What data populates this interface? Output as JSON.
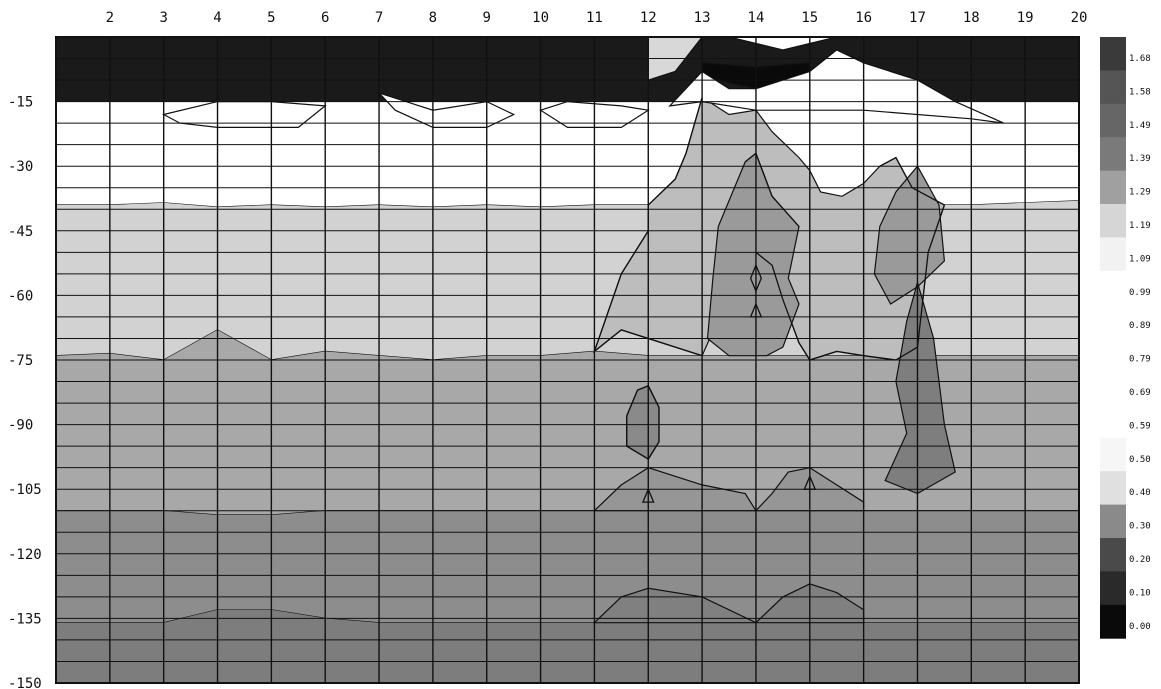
{
  "chart_data": {
    "type": "heatmap",
    "title": "",
    "xlabel": "",
    "ylabel": "",
    "x_ticks": [
      2,
      3,
      4,
      5,
      6,
      7,
      8,
      9,
      10,
      11,
      12,
      13,
      14,
      15,
      16,
      17,
      18,
      19,
      20
    ],
    "xlim": [
      1,
      20
    ],
    "y_ticks": [
      -15,
      -30,
      -45,
      -60,
      -75,
      -90,
      -105,
      -120,
      -135,
      -150
    ],
    "ylim": [
      -150,
      0
    ],
    "grid": true,
    "legend": {
      "position": "right",
      "levels": [
        "1.68",
        "1.58",
        "1.49",
        "1.39",
        "1.29",
        "1.19",
        "1.09",
        "0.99",
        "0.89",
        "0.79",
        "0.69",
        "0.59",
        "0.50",
        "0.40",
        "0.30",
        "0.20",
        "0.10",
        "0.00"
      ],
      "colors": [
        "#3a3a3a",
        "#555555",
        "#666666",
        "#7a7a7a",
        "#a0a0a0",
        "#d6d6d6",
        "#f2f2f2",
        "#ffffff",
        "#ffffff",
        "#ffffff",
        "#ffffff",
        "#ffffff",
        "#f6f6f6",
        "#e0e0e0",
        "#8a8a8a",
        "#4a4a4a",
        "#2a2a2a",
        "#0a0a0a"
      ]
    },
    "bands": [
      {
        "color": "#1a1a1a",
        "boundary": [
          [
            1,
            -15
          ],
          [
            20,
            -15
          ]
        ]
      },
      {
        "color": "#ffffff",
        "boundary": [
          [
            1,
            -39
          ],
          [
            2,
            -39
          ],
          [
            3,
            -38.5
          ],
          [
            4,
            -39.5
          ],
          [
            5,
            -39
          ],
          [
            6,
            -39.5
          ],
          [
            7,
            -39
          ],
          [
            8,
            -39.5
          ],
          [
            9,
            -39
          ],
          [
            10,
            -39.5
          ],
          [
            11,
            -39
          ],
          [
            12,
            -39
          ],
          [
            13,
            -39
          ],
          [
            14,
            -39
          ],
          [
            15,
            -39
          ],
          [
            16,
            -39
          ],
          [
            17,
            -39
          ],
          [
            18,
            -39
          ],
          [
            19,
            -38.5
          ],
          [
            20,
            -38
          ]
        ]
      },
      {
        "color": "#d2d2d2",
        "boundary": [
          [
            1,
            -74
          ],
          [
            2,
            -73.5
          ],
          [
            3,
            -75
          ],
          [
            4,
            -68
          ],
          [
            5,
            -75
          ],
          [
            6,
            -73
          ],
          [
            7,
            -74
          ],
          [
            8,
            -75
          ],
          [
            9,
            -74
          ],
          [
            10,
            -74
          ],
          [
            11,
            -73
          ],
          [
            12,
            -74
          ],
          [
            13,
            -74
          ],
          [
            14,
            -74
          ],
          [
            15,
            -74
          ],
          [
            16,
            -74
          ],
          [
            17,
            -74
          ],
          [
            18,
            -74
          ],
          [
            19,
            -74
          ],
          [
            20,
            -74
          ]
        ]
      },
      {
        "color": "#a8a8a8",
        "boundary": [
          [
            1,
            -110
          ],
          [
            2,
            -110
          ],
          [
            3,
            -110
          ],
          [
            4,
            -111
          ],
          [
            5,
            -111
          ],
          [
            6,
            -110
          ],
          [
            7,
            -110
          ],
          [
            8,
            -110
          ],
          [
            9,
            -110
          ],
          [
            10,
            -110
          ],
          [
            11,
            -110
          ],
          [
            12,
            -110
          ],
          [
            13,
            -110
          ],
          [
            14,
            -110
          ],
          [
            15,
            -110
          ],
          [
            16,
            -110
          ],
          [
            17,
            -110
          ],
          [
            18,
            -110
          ],
          [
            19,
            -110
          ],
          [
            20,
            -110
          ]
        ]
      },
      {
        "color": "#8d8d8d",
        "boundary": [
          [
            1,
            -136
          ],
          [
            2,
            -136
          ],
          [
            3,
            -136
          ],
          [
            4,
            -133
          ],
          [
            5,
            -133
          ],
          [
            6,
            -135
          ],
          [
            7,
            -136
          ],
          [
            8,
            -136
          ],
          [
            9,
            -136
          ],
          [
            10,
            -136
          ],
          [
            11,
            -136
          ],
          [
            12,
            -136
          ],
          [
            13,
            -136
          ],
          [
            14,
            -136
          ],
          [
            15,
            -136
          ],
          [
            16,
            -136
          ],
          [
            17,
            -136
          ],
          [
            18,
            -136
          ],
          [
            19,
            -136
          ],
          [
            20,
            -136
          ]
        ]
      },
      {
        "color": "#7d7d7d",
        "boundary": [
          [
            1,
            -150
          ],
          [
            20,
            -150
          ]
        ]
      }
    ],
    "regions": [
      {
        "color": "#bdbdbd",
        "points": [
          [
            12,
            -39
          ],
          [
            12.5,
            -33
          ],
          [
            12.7,
            -27
          ],
          [
            13,
            -14
          ],
          [
            13.5,
            -18
          ],
          [
            14,
            -17
          ],
          [
            14.3,
            -22
          ],
          [
            14.8,
            -28
          ],
          [
            15,
            -31
          ],
          [
            15.2,
            -36
          ],
          [
            15.6,
            -37
          ],
          [
            16,
            -34
          ],
          [
            16.3,
            -30
          ],
          [
            16.6,
            -28
          ],
          [
            16.9,
            -35
          ],
          [
            17.5,
            -39
          ],
          [
            17.2,
            -50
          ],
          [
            17,
            -72
          ],
          [
            16.6,
            -75
          ],
          [
            16,
            -74
          ],
          [
            15.5,
            -73
          ],
          [
            15,
            -75
          ],
          [
            14.8,
            -71
          ],
          [
            14.5,
            -61
          ],
          [
            14.3,
            -53
          ],
          [
            14,
            -50
          ],
          [
            13.5,
            -60
          ],
          [
            13,
            -74
          ],
          [
            12.5,
            -72
          ],
          [
            12,
            -70
          ],
          [
            11.5,
            -68
          ],
          [
            11,
            -73
          ],
          [
            11.5,
            -55
          ],
          [
            12,
            -45
          ]
        ]
      },
      {
        "color": "#9a9a9a",
        "points": [
          [
            13.3,
            -44
          ],
          [
            13.8,
            -29
          ],
          [
            14,
            -27
          ],
          [
            14.3,
            -37
          ],
          [
            14.8,
            -44
          ],
          [
            14.6,
            -56
          ],
          [
            14.8,
            -62
          ],
          [
            14.5,
            -72
          ],
          [
            14.2,
            -74
          ],
          [
            13.5,
            -74
          ],
          [
            13.1,
            -70
          ],
          [
            13.2,
            -56
          ]
        ]
      },
      {
        "color": "#9a9a9a",
        "points": [
          [
            16.3,
            -44
          ],
          [
            16.6,
            -36
          ],
          [
            17,
            -30
          ],
          [
            17.4,
            -39
          ],
          [
            17.5,
            -52
          ],
          [
            17,
            -58
          ],
          [
            16.5,
            -62
          ],
          [
            16.2,
            -55
          ]
        ]
      },
      {
        "color": "#7e7e7e",
        "points": [
          [
            16.6,
            -80
          ],
          [
            16.8,
            -66
          ],
          [
            17,
            -57
          ],
          [
            17.3,
            -70
          ],
          [
            17.5,
            -90
          ],
          [
            17.7,
            -101
          ],
          [
            17,
            -106
          ],
          [
            16.4,
            -103
          ],
          [
            16.8,
            -92
          ]
        ]
      },
      {
        "color": "#8a8a8a",
        "points": [
          [
            11.6,
            -88
          ],
          [
            11.8,
            -82
          ],
          [
            12,
            -81
          ],
          [
            12.2,
            -86
          ],
          [
            12.2,
            -94
          ],
          [
            12,
            -98
          ],
          [
            11.6,
            -95
          ]
        ]
      },
      {
        "color": "#969696",
        "points": [
          [
            11,
            -110
          ],
          [
            11.5,
            -104
          ],
          [
            12,
            -100
          ],
          [
            13,
            -104
          ],
          [
            13.8,
            -106
          ],
          [
            14,
            -110
          ],
          [
            14.3,
            -106
          ],
          [
            14.6,
            -101
          ],
          [
            15,
            -100
          ],
          [
            15.5,
            -104
          ],
          [
            16,
            -108
          ],
          [
            16,
            -110
          ]
        ]
      },
      {
        "color": "#808080",
        "points": [
          [
            11,
            -136
          ],
          [
            11.5,
            -130
          ],
          [
            12,
            -128
          ],
          [
            13,
            -130
          ],
          [
            14,
            -136
          ],
          [
            14.5,
            -130
          ],
          [
            15,
            -127
          ],
          [
            15.5,
            -129
          ],
          [
            16,
            -133
          ],
          [
            16,
            -136
          ]
        ]
      },
      {
        "color": "#0a0a0a",
        "points": [
          [
            13,
            -6
          ],
          [
            14,
            -7
          ],
          [
            15,
            -6
          ],
          [
            15,
            -9
          ],
          [
            14,
            -12
          ],
          [
            13,
            -9
          ]
        ]
      },
      {
        "color": "#d8d8d8",
        "points": [
          [
            12,
            0
          ],
          [
            13,
            0
          ],
          [
            12.5,
            -8
          ],
          [
            12,
            -10
          ]
        ]
      },
      {
        "color": "#ffffff",
        "points": [
          [
            3,
            -18
          ],
          [
            4,
            -15
          ],
          [
            5,
            -15
          ],
          [
            6,
            -16
          ],
          [
            5.5,
            -21
          ],
          [
            4,
            -21
          ],
          [
            3.3,
            -20
          ]
        ]
      },
      {
        "color": "#ffffff",
        "points": [
          [
            7,
            -13
          ],
          [
            7.5,
            -15
          ],
          [
            8,
            -17
          ],
          [
            9,
            -15
          ],
          [
            9.5,
            -18
          ],
          [
            9,
            -21
          ],
          [
            8,
            -21
          ],
          [
            7.3,
            -17
          ]
        ]
      },
      {
        "color": "#ffffff",
        "points": [
          [
            10,
            -17
          ],
          [
            10.5,
            -15
          ],
          [
            11.5,
            -16
          ],
          [
            12,
            -17
          ],
          [
            11.5,
            -21
          ],
          [
            10.5,
            -21
          ]
        ]
      },
      {
        "color": "#ffffff",
        "points": [
          [
            12.4,
            -16
          ],
          [
            13,
            -8
          ],
          [
            13.5,
            -12
          ],
          [
            14,
            -12
          ],
          [
            14.5,
            -10
          ],
          [
            15,
            -8
          ],
          [
            15.5,
            -3
          ],
          [
            16,
            -6
          ],
          [
            16.5,
            -8
          ],
          [
            17,
            -10
          ],
          [
            17.7,
            -15
          ],
          [
            18.6,
            -20
          ],
          [
            18,
            -19
          ],
          [
            16,
            -17
          ],
          [
            14,
            -17
          ],
          [
            13,
            -15
          ]
        ]
      },
      {
        "color": "#ffffff",
        "points": [
          [
            13.5,
            0
          ],
          [
            15.5,
            0
          ],
          [
            14.5,
            -3
          ]
        ]
      }
    ],
    "contours": [
      {
        "points": [
          [
            13,
            -14
          ],
          [
            12.7,
            -27
          ],
          [
            12.5,
            -33
          ],
          [
            12,
            -39
          ],
          [
            12,
            -45
          ],
          [
            11.5,
            -55
          ],
          [
            11,
            -73
          ],
          [
            11.5,
            -68
          ],
          [
            12,
            -70
          ],
          [
            12.5,
            -72
          ],
          [
            13,
            -74
          ]
        ]
      },
      {
        "points": [
          [
            16.9,
            -35
          ],
          [
            17.5,
            -39
          ],
          [
            17.2,
            -50
          ],
          [
            17,
            -72
          ],
          [
            16.6,
            -75
          ],
          [
            16,
            -74
          ],
          [
            15.5,
            -73
          ],
          [
            15,
            -75
          ],
          [
            14.8,
            -71
          ],
          [
            14.5,
            -61
          ],
          [
            14.3,
            -53
          ],
          [
            14,
            -50
          ]
        ]
      },
      {
        "points": [
          [
            16.3,
            -30
          ],
          [
            16.6,
            -28
          ],
          [
            16.9,
            -35
          ]
        ]
      },
      {
        "points": [
          [
            11.6,
            -88
          ],
          [
            11.8,
            -82
          ],
          [
            12,
            -81
          ],
          [
            12.2,
            -86
          ],
          [
            12.2,
            -94
          ],
          [
            12,
            -98
          ],
          [
            11.6,
            -95
          ],
          [
            11.6,
            -88
          ]
        ]
      },
      {
        "points": [
          [
            13.8,
            -29
          ],
          [
            14,
            -27
          ],
          [
            14.3,
            -37
          ],
          [
            14.8,
            -44
          ]
        ]
      },
      {
        "points": [
          [
            14,
            -53
          ],
          [
            14.1,
            -56
          ],
          [
            14,
            -59
          ],
          [
            13.9,
            -56
          ],
          [
            14,
            -53
          ]
        ]
      },
      {
        "points": [
          [
            14,
            -62
          ],
          [
            14.1,
            -65
          ],
          [
            13.9,
            -65
          ],
          [
            14,
            -62
          ]
        ]
      },
      {
        "points": [
          [
            15,
            -102
          ],
          [
            15.1,
            -105
          ],
          [
            14.9,
            -105
          ],
          [
            15,
            -102
          ]
        ]
      },
      {
        "points": [
          [
            12,
            -105
          ],
          [
            12.1,
            -108
          ],
          [
            11.9,
            -108
          ],
          [
            12,
            -105
          ]
        ]
      }
    ]
  }
}
